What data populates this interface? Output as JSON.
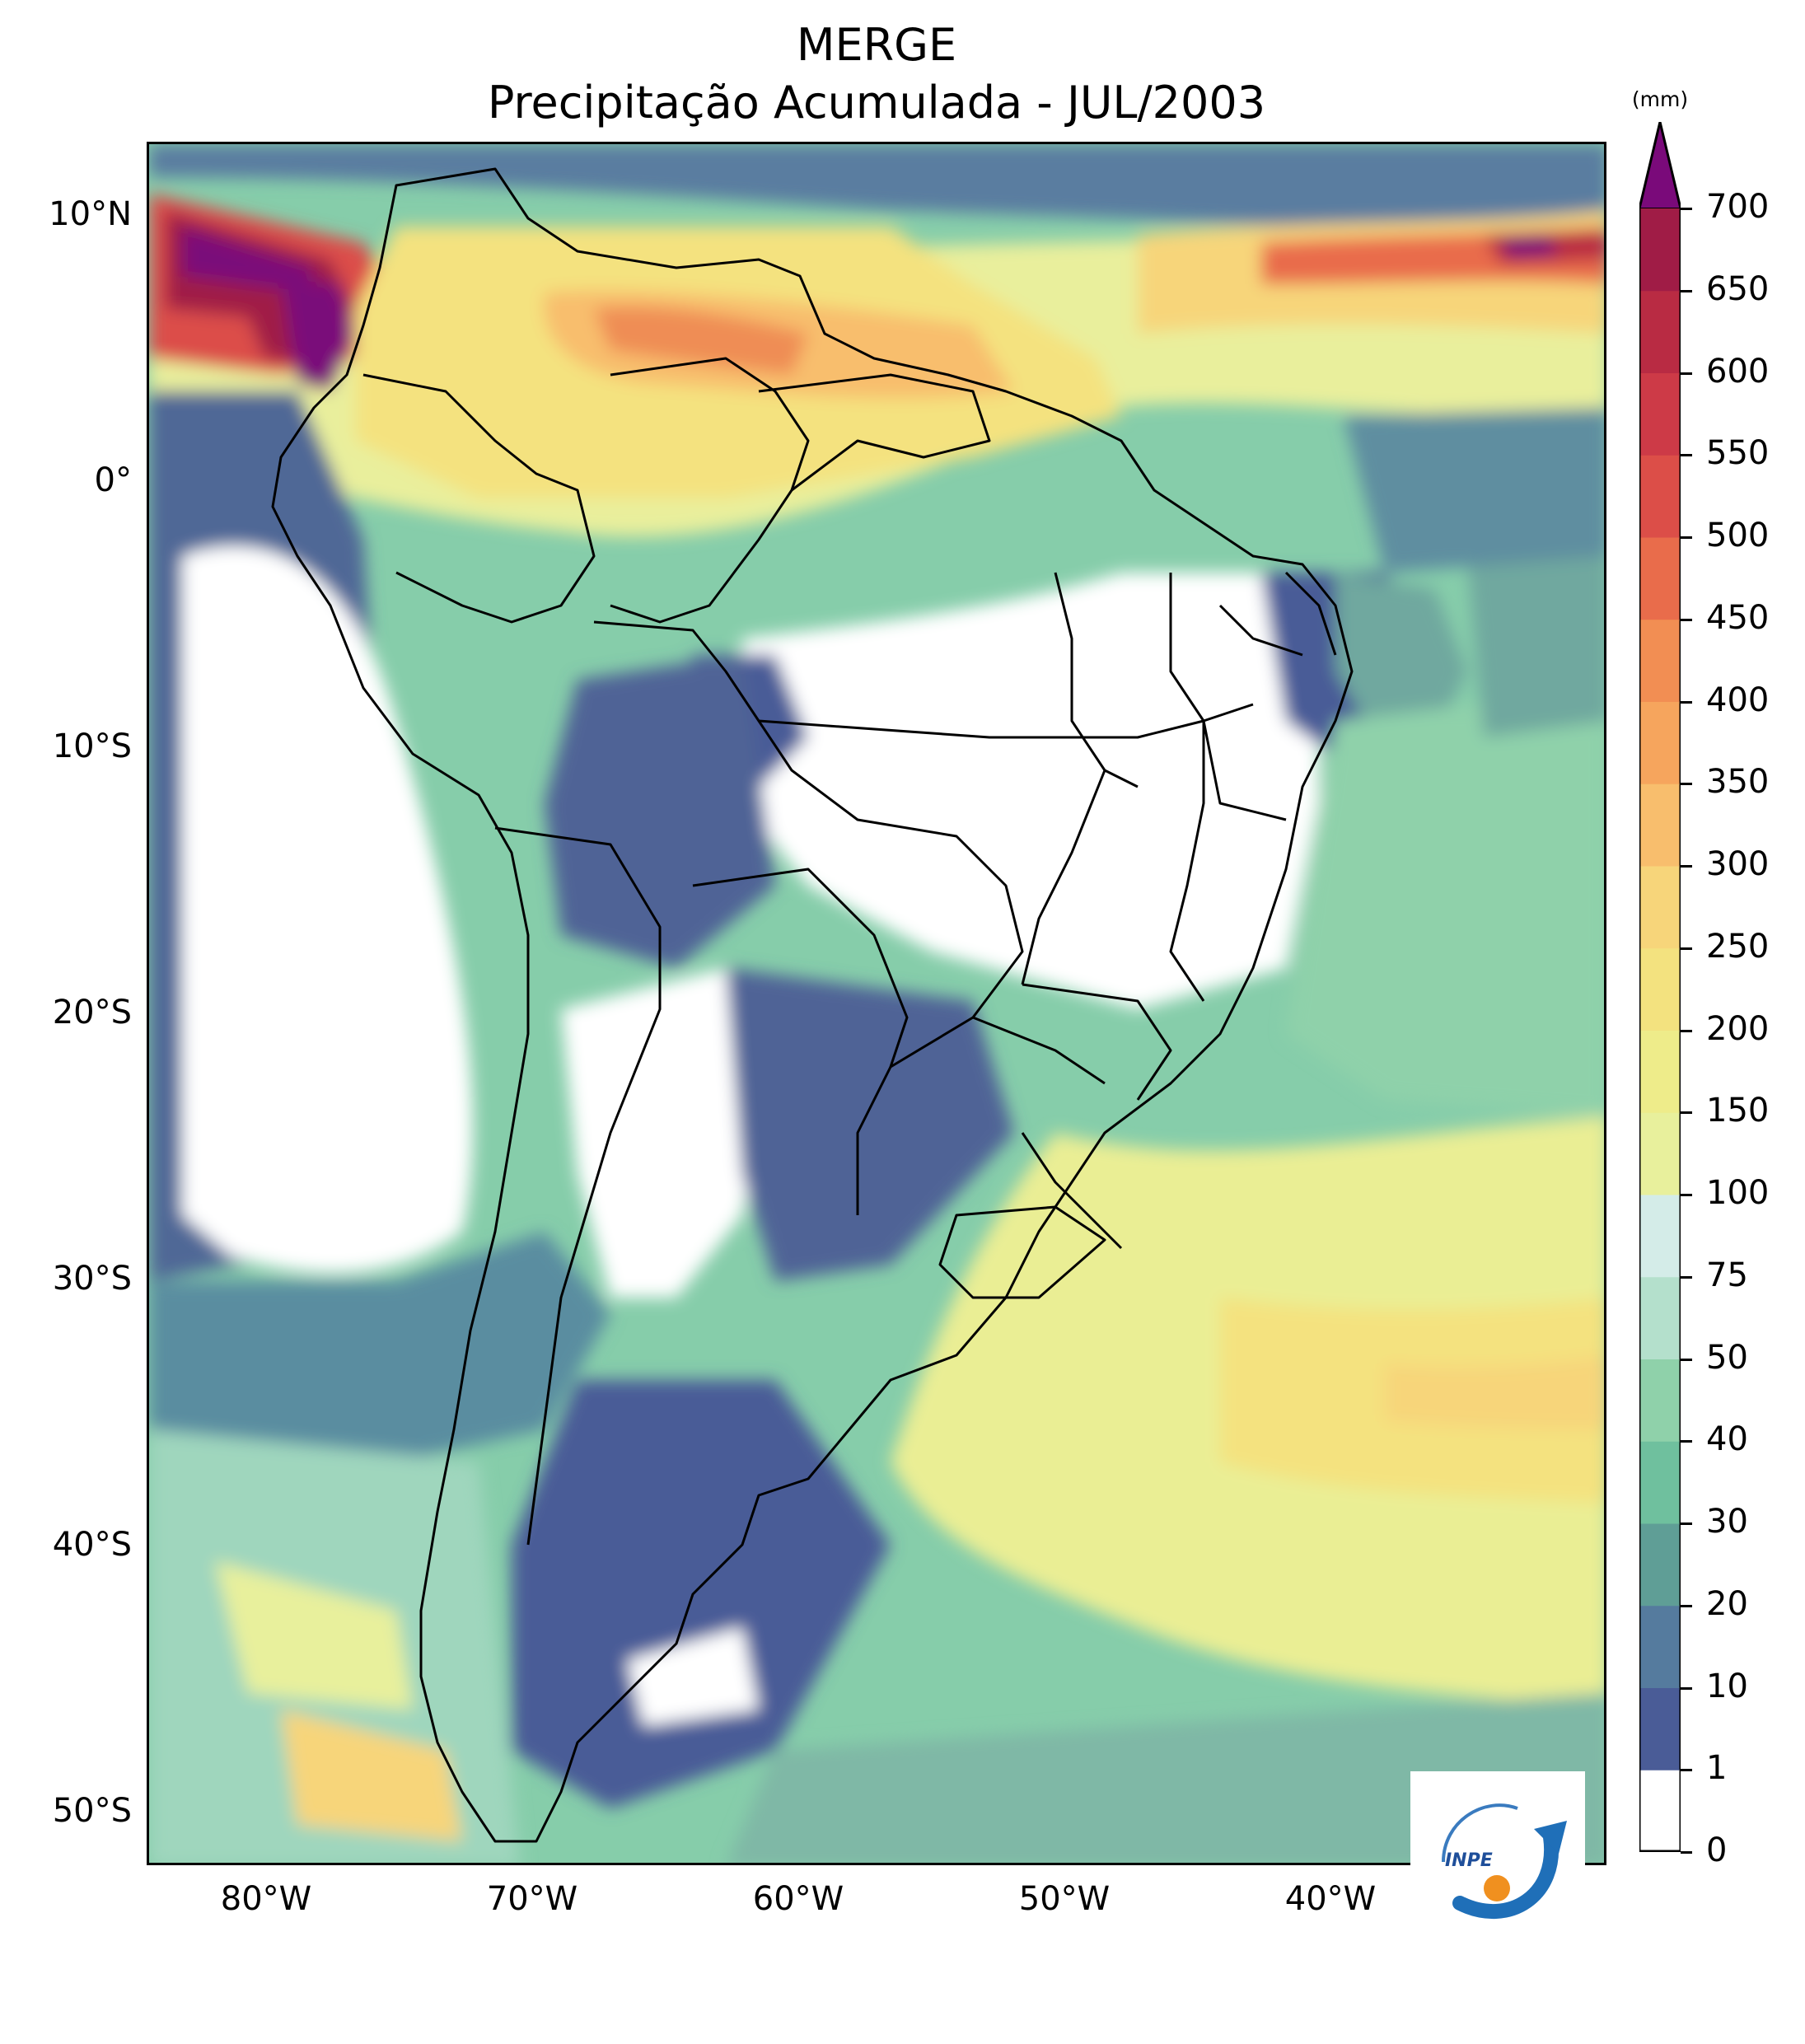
{
  "title": {
    "line1": "MERGE",
    "line2": "Precipitação Acumulada - JUL/2003"
  },
  "map": {
    "lat_labels": [
      "10°N",
      "0°",
      "10°S",
      "20°S",
      "30°S",
      "40°S",
      "50°S"
    ],
    "lon_labels": [
      "80°W",
      "70°W",
      "60°W",
      "50°W",
      "40°W"
    ],
    "logo_text": "INPE"
  },
  "colorbar": {
    "unit": "(mm)",
    "levels": [
      0,
      1,
      10,
      20,
      30,
      40,
      50,
      75,
      100,
      150,
      200,
      250,
      300,
      350,
      400,
      450,
      500,
      550,
      600,
      650,
      700
    ],
    "colors": [
      "#ffffff",
      "#4a5c97",
      "#557b9e",
      "#5f9e96",
      "#6fc09e",
      "#8fd1aa",
      "#b4e0cc",
      "#d4ece8",
      "#e8f09c",
      "#eeec8a",
      "#f3e27f",
      "#f7d57a",
      "#f8be6d",
      "#f6a55d",
      "#f28e53",
      "#e96c4b",
      "#dc4e48",
      "#cd3a47",
      "#b92b43",
      "#a01c46"
    ],
    "extend_color": "#7a0a7a"
  }
}
